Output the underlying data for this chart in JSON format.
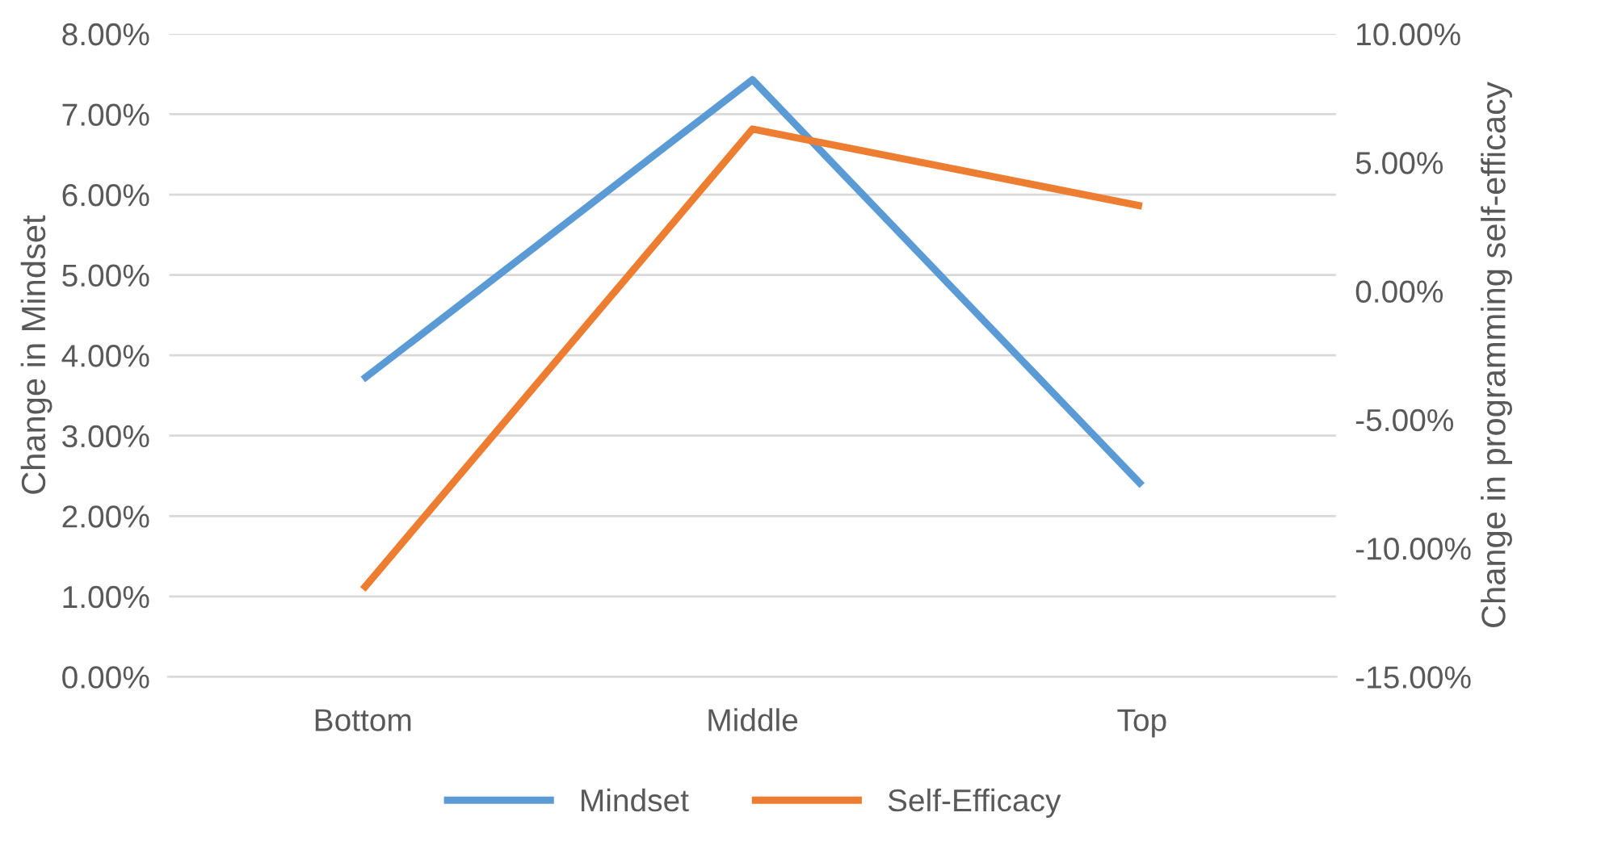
{
  "chart_data": {
    "type": "line",
    "categories": [
      "Bottom",
      "Middle",
      "Top"
    ],
    "ylabel": "Change in Mindset",
    "y2label": "Change in programming self-efficacy",
    "series": [
      {
        "name": "Mindset",
        "color": "#5b9bd5",
        "values": [
          3.7,
          7.43,
          2.38
        ]
      },
      {
        "name": "Self-Efficacy",
        "color": "#ed7d31",
        "values": [
          -11.6,
          6.3,
          3.3
        ],
        "axis": "y2"
      }
    ],
    "ylim": [
      0,
      8
    ],
    "yticks": [
      {
        "value": 0,
        "label": "0.00%"
      },
      {
        "value": 1,
        "label": "1.00%"
      },
      {
        "value": 2,
        "label": "2.00%"
      },
      {
        "value": 3,
        "label": "3.00%"
      },
      {
        "value": 4,
        "label": "4.00%"
      },
      {
        "value": 5,
        "label": "5.00%"
      },
      {
        "value": 6,
        "label": "6.00%"
      },
      {
        "value": 7,
        "label": "7.00%"
      },
      {
        "value": 8,
        "label": "8.00%"
      }
    ],
    "y2lim": [
      -15,
      10
    ],
    "y2ticks": [
      {
        "value": -15,
        "label": "-15.00%"
      },
      {
        "value": -10,
        "label": "-10.00%"
      },
      {
        "value": -5,
        "label": "-5.00%"
      },
      {
        "value": 0,
        "label": "0.00%"
      },
      {
        "value": 5,
        "label": "5.00%"
      },
      {
        "value": 10,
        "label": "10.00%"
      }
    ],
    "grid": "y",
    "legend": "bottom",
    "marker": "none",
    "line_style": "solid"
  }
}
